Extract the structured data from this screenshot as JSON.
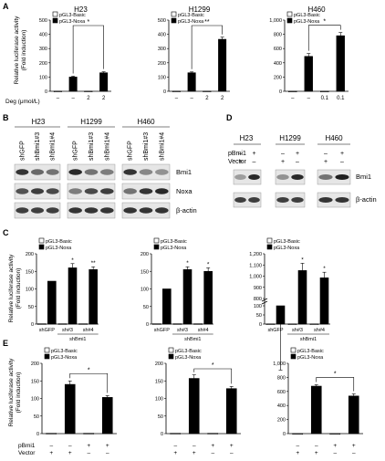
{
  "panel_letters": {
    "A": "A",
    "B": "B",
    "C": "C",
    "D": "D",
    "E": "E"
  },
  "legend": {
    "basic": "pGL3-Basic",
    "noxa": "pGL3-Noxa"
  },
  "ylabel": {
    "line1": "Relative luciferase activity",
    "line2": "(Fold induction)"
  },
  "deg_label": "Deg (μmol/L)",
  "blot_B": {
    "cells": [
      "H23",
      "H1299",
      "H460"
    ],
    "lanes": [
      "shGFP",
      "shBmi1#3",
      "shBmi1#4"
    ],
    "bands": [
      "Bmi1",
      "Noxa",
      "β-actin"
    ]
  },
  "blot_D": {
    "cells": [
      "H23",
      "H1299",
      "H460"
    ],
    "row1_label": "pBmi1",
    "row2_label": "Vector",
    "row1_marks": [
      "–",
      "+"
    ],
    "row2_marks": [
      "+",
      "–"
    ],
    "bands": [
      "Bmi1",
      "β-actin"
    ]
  },
  "sh_labels": {
    "gfp": "shGFP",
    "sh3": "sh#3",
    "sh4": "sh#4",
    "group": "shBmi1"
  },
  "e_rows": {
    "pbmi1": "pBmi1",
    "vector": "Vector"
  },
  "colors": {
    "noxa": "#000000",
    "basic": "#ffffff"
  },
  "chart_data": [
    {
      "panel": "A",
      "type": "bar",
      "title": "H23",
      "ylim": [
        0,
        500
      ],
      "yticks": [
        "0",
        "100",
        "200",
        "300",
        "400",
        "500"
      ],
      "categories": [
        "–",
        "–",
        "2",
        "2"
      ],
      "series": [
        {
          "name": "pGL3-Basic",
          "values": [
            1,
            null,
            1,
            null
          ]
        },
        {
          "name": "pGL3-Noxa",
          "values": [
            null,
            100,
            null,
            130
          ]
        }
      ],
      "errors": [
        0,
        6,
        0,
        7
      ],
      "sig": [
        {
          "from": 1,
          "to": 3,
          "label": "*"
        }
      ]
    },
    {
      "panel": "A",
      "type": "bar",
      "title": "H1299",
      "ylim": [
        0,
        500
      ],
      "yticks": [
        "0",
        "100",
        "200",
        "300",
        "400",
        "500"
      ],
      "categories": [
        "–",
        "–",
        "2",
        "2"
      ],
      "series": [
        {
          "name": "pGL3-Basic",
          "values": [
            1,
            null,
            1,
            null
          ]
        },
        {
          "name": "pGL3-Noxa",
          "values": [
            null,
            130,
            null,
            365
          ]
        }
      ],
      "errors": [
        0,
        6,
        0,
        15
      ],
      "sig": [
        {
          "from": 1,
          "to": 3,
          "label": "**"
        }
      ]
    },
    {
      "panel": "A",
      "type": "bar",
      "title": "H460",
      "ylim": [
        0,
        1000
      ],
      "yticks": [
        "0",
        "200",
        "400",
        "600",
        "800",
        "1,000"
      ],
      "categories": [
        "–",
        "–",
        "0.1",
        "0.1"
      ],
      "series": [
        {
          "name": "pGL3-Basic",
          "values": [
            1,
            null,
            1,
            null
          ]
        },
        {
          "name": "pGL3-Noxa",
          "values": [
            null,
            490,
            null,
            780
          ]
        }
      ],
      "errors": [
        0,
        40,
        0,
        45
      ],
      "sig": [
        {
          "from": 1,
          "to": 3,
          "label": "*"
        }
      ]
    },
    {
      "panel": "C",
      "type": "bar",
      "ylim": [
        0,
        200
      ],
      "yticks": [
        "0",
        "50",
        "100",
        "150",
        "200"
      ],
      "categories": [
        "shGFP",
        "sh#3",
        "sh#4"
      ],
      "series": [
        {
          "name": "pGL3-Basic",
          "values": [
            1,
            1,
            1
          ]
        },
        {
          "name": "pGL3-Noxa",
          "values": [
            122,
            160,
            155
          ]
        }
      ],
      "errors": [
        0,
        12,
        8
      ],
      "sig_labels": [
        "",
        "*",
        "**"
      ]
    },
    {
      "panel": "C",
      "type": "bar",
      "ylim": [
        0,
        200
      ],
      "yticks": [
        "0",
        "50",
        "100",
        "150",
        "200"
      ],
      "categories": [
        "shGFP",
        "sh#3",
        "sh#4"
      ],
      "series": [
        {
          "name": "pGL3-Basic",
          "values": [
            1,
            1,
            1
          ]
        },
        {
          "name": "pGL3-Noxa",
          "values": [
            100,
            155,
            150
          ]
        }
      ],
      "errors": [
        0,
        8,
        10
      ],
      "sig_labels": [
        "",
        "*",
        "*"
      ]
    },
    {
      "panel": "C",
      "type": "bar",
      "ylim": [
        0,
        1200
      ],
      "yticks": [
        "0",
        "50",
        "100",
        "800",
        "900",
        "1,000",
        "1,100",
        "1,200"
      ],
      "categories": [
        "shGFP",
        "sh#3",
        "sh#4"
      ],
      "series": [
        {
          "name": "pGL3-Basic",
          "values": [
            1,
            1,
            1
          ]
        },
        {
          "name": "pGL3-Noxa",
          "values": [
            100,
            1050,
            985
          ]
        }
      ],
      "errors": [
        60,
        65,
        50
      ],
      "sig_labels": [
        "",
        "*",
        "*"
      ]
    },
    {
      "panel": "E",
      "type": "bar",
      "ylim": [
        0,
        200
      ],
      "yticks": [
        "0",
        "50",
        "100",
        "150",
        "200"
      ],
      "series": [
        {
          "name": "pGL3-Basic",
          "values": [
            1,
            1
          ]
        },
        {
          "name": "pGL3-Noxa",
          "values": [
            140,
            103
          ]
        }
      ],
      "errors": [
        10,
        5
      ],
      "sig": [
        {
          "label": "*"
        }
      ]
    },
    {
      "panel": "E",
      "type": "bar",
      "ylim": [
        0,
        200
      ],
      "yticks": [
        "0",
        "50",
        "100",
        "150",
        "200"
      ],
      "series": [
        {
          "name": "pGL3-Basic",
          "values": [
            1,
            1
          ]
        },
        {
          "name": "pGL3-Noxa",
          "values": [
            157,
            128
          ]
        }
      ],
      "errors": [
        10,
        6
      ],
      "sig": [
        {
          "label": "*"
        }
      ]
    },
    {
      "panel": "E",
      "type": "bar",
      "ylim": [
        0,
        1000
      ],
      "yticks": [
        "0",
        "200",
        "400",
        "600",
        "800",
        "1,000"
      ],
      "series": [
        {
          "name": "pGL3-Basic",
          "values": [
            1,
            1
          ]
        },
        {
          "name": "pGL3-Noxa",
          "values": [
            675,
            535
          ]
        }
      ],
      "errors": [
        20,
        30
      ],
      "sig": [
        {
          "label": "*"
        }
      ]
    }
  ]
}
